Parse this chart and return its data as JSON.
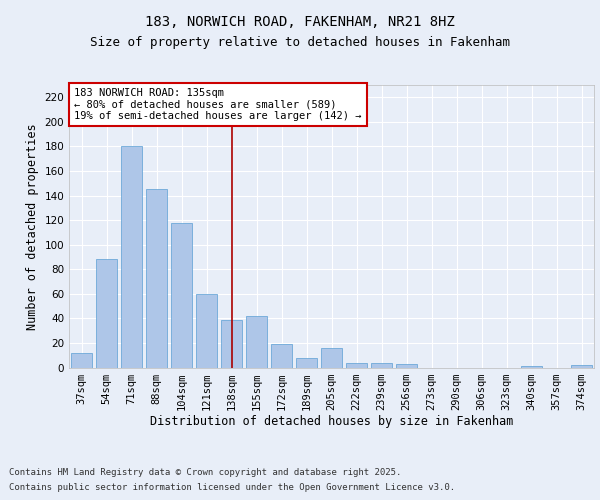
{
  "title1": "183, NORWICH ROAD, FAKENHAM, NR21 8HZ",
  "title2": "Size of property relative to detached houses in Fakenham",
  "xlabel": "Distribution of detached houses by size in Fakenham",
  "ylabel": "Number of detached properties",
  "categories": [
    "37sqm",
    "54sqm",
    "71sqm",
    "88sqm",
    "104sqm",
    "121sqm",
    "138sqm",
    "155sqm",
    "172sqm",
    "189sqm",
    "205sqm",
    "222sqm",
    "239sqm",
    "256sqm",
    "273sqm",
    "290sqm",
    "306sqm",
    "323sqm",
    "340sqm",
    "357sqm",
    "374sqm"
  ],
  "values": [
    12,
    88,
    180,
    145,
    118,
    60,
    39,
    42,
    19,
    8,
    16,
    4,
    4,
    3,
    0,
    0,
    0,
    0,
    1,
    0,
    2
  ],
  "bar_color": "#aec6e8",
  "bar_edge_color": "#5a9fd4",
  "vline_x": 6.0,
  "vline_color": "#aa0000",
  "annotation_text": "183 NORWICH ROAD: 135sqm\n← 80% of detached houses are smaller (589)\n19% of semi-detached houses are larger (142) →",
  "annotation_box_color": "#ffffff",
  "annotation_box_edge": "#cc0000",
  "ylim": [
    0,
    230
  ],
  "yticks": [
    0,
    20,
    40,
    60,
    80,
    100,
    120,
    140,
    160,
    180,
    200,
    220
  ],
  "background_color": "#e8eef8",
  "plot_bg_color": "#e8eef8",
  "grid_color": "#ffffff",
  "footer1": "Contains HM Land Registry data © Crown copyright and database right 2025.",
  "footer2": "Contains public sector information licensed under the Open Government Licence v3.0.",
  "title_fontsize": 10,
  "subtitle_fontsize": 9,
  "axis_label_fontsize": 8.5,
  "tick_fontsize": 7.5,
  "annotation_fontsize": 7.5,
  "footer_fontsize": 6.5
}
